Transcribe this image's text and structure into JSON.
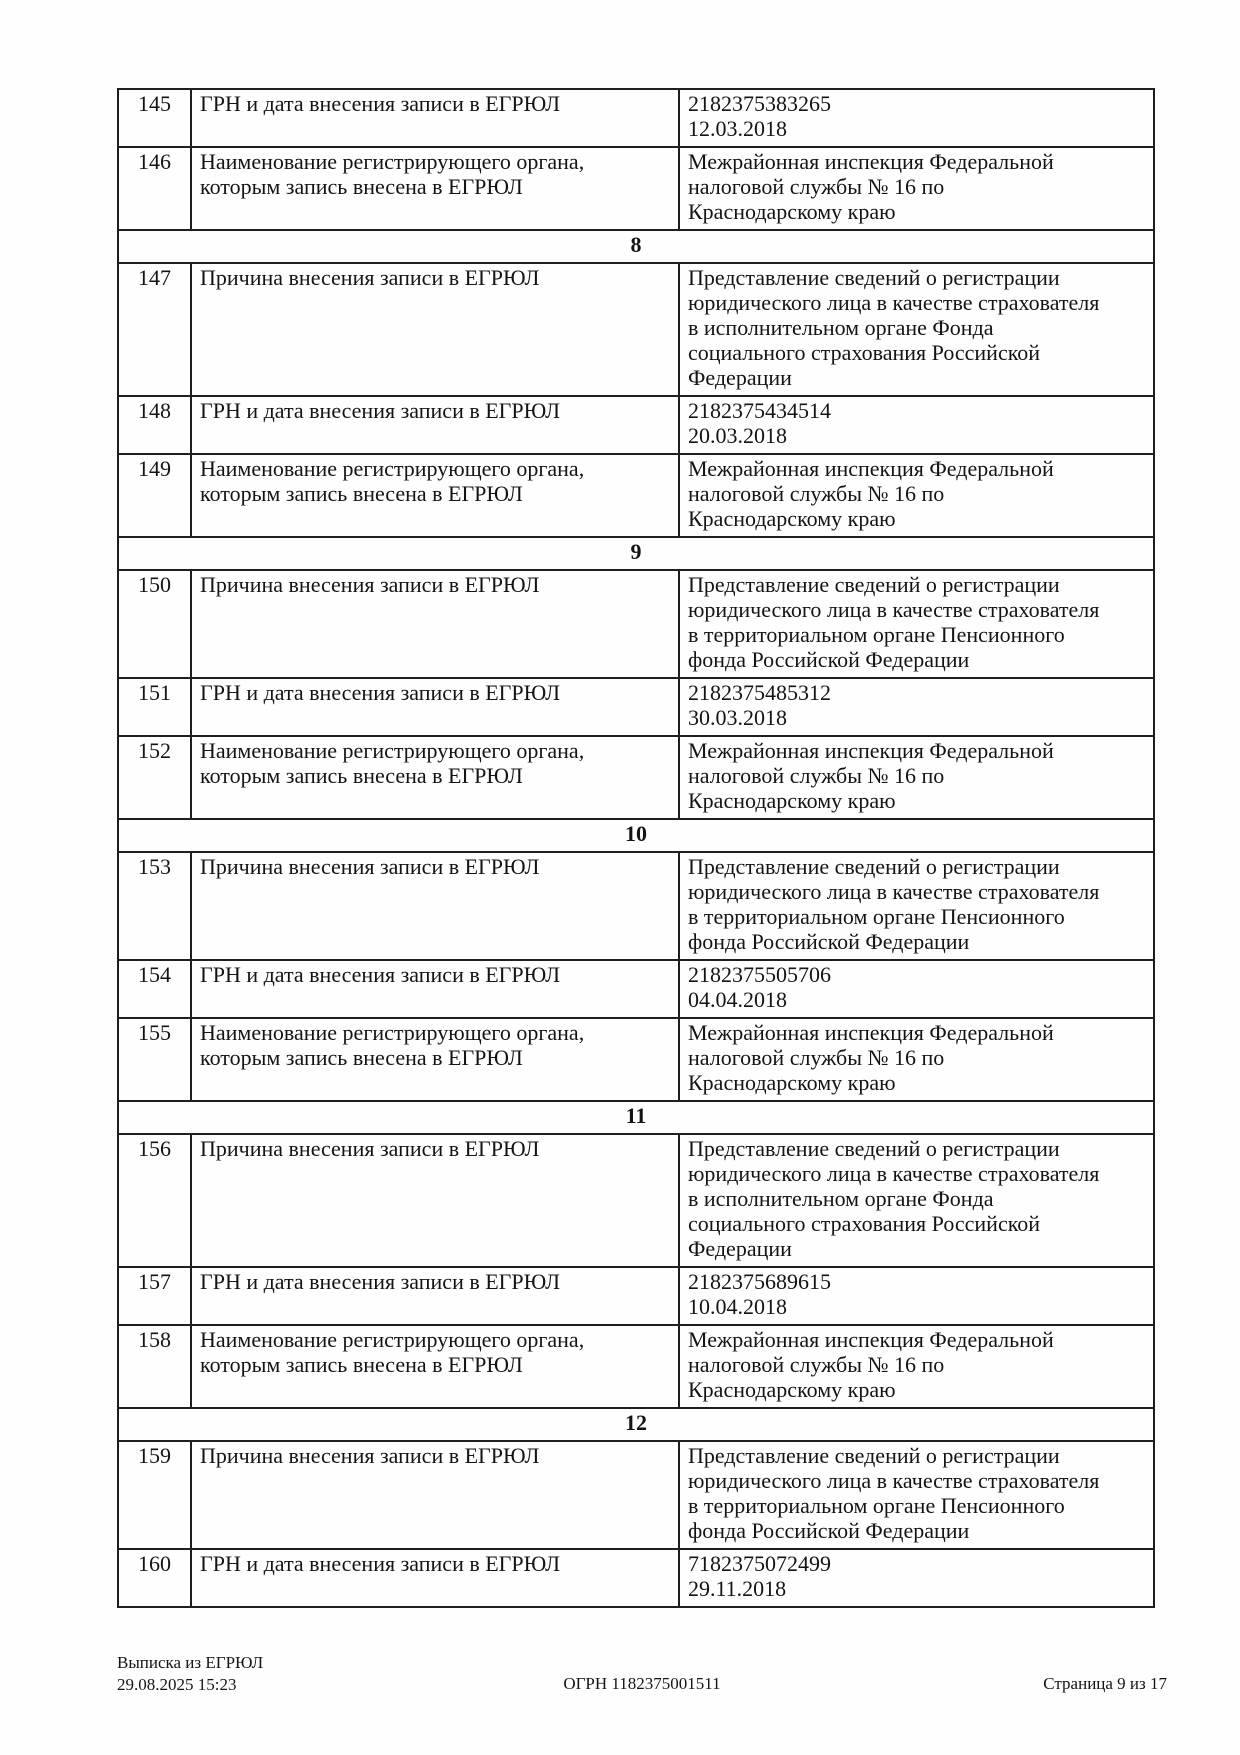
{
  "rows": [
    {
      "num": "145",
      "label": "ГРН и дата внесения записи в ЕГРЮЛ",
      "value": "2182375383265\n12.03.2018"
    },
    {
      "num": "146",
      "label": "Наименование регистрирующего органа,\nкоторым запись внесена в ЕГРЮЛ",
      "value": "Межрайонная инспекция Федеральной\nналоговой службы № 16 по\nКраснодарскому краю"
    },
    {
      "section": "8"
    },
    {
      "num": "147",
      "label": "Причина внесения записи в ЕГРЮЛ",
      "value": "Представление сведений о регистрации\nюридического лица в качестве страхователя\nв исполнительном органе Фонда\nсоциального страхования Российской\nФедерации"
    },
    {
      "num": "148",
      "label": "ГРН и дата внесения записи в ЕГРЮЛ",
      "value": "2182375434514\n20.03.2018"
    },
    {
      "num": "149",
      "label": "Наименование регистрирующего органа,\nкоторым запись внесена в ЕГРЮЛ",
      "value": "Межрайонная инспекция Федеральной\nналоговой службы № 16 по\nКраснодарскому краю"
    },
    {
      "section": "9"
    },
    {
      "num": "150",
      "label": "Причина внесения записи в ЕГРЮЛ",
      "value": "Представление сведений о регистрации\nюридического лица в качестве страхователя\nв территориальном органе Пенсионного\nфонда Российской Федерации"
    },
    {
      "num": "151",
      "label": "ГРН и дата внесения записи в ЕГРЮЛ",
      "value": "2182375485312\n30.03.2018"
    },
    {
      "num": "152",
      "label": "Наименование регистрирующего органа,\nкоторым запись внесена в ЕГРЮЛ",
      "value": "Межрайонная инспекция Федеральной\nналоговой службы № 16 по\nКраснодарскому краю"
    },
    {
      "section": "10"
    },
    {
      "num": "153",
      "label": "Причина внесения записи в ЕГРЮЛ",
      "value": "Представление сведений о регистрации\nюридического лица в качестве страхователя\nв территориальном органе Пенсионного\nфонда Российской Федерации"
    },
    {
      "num": "154",
      "label": "ГРН и дата внесения записи в ЕГРЮЛ",
      "value": "2182375505706\n04.04.2018"
    },
    {
      "num": "155",
      "label": "Наименование регистрирующего органа,\nкоторым запись внесена в ЕГРЮЛ",
      "value": "Межрайонная инспекция Федеральной\nналоговой службы № 16 по\nКраснодарскому краю"
    },
    {
      "section": "11"
    },
    {
      "num": "156",
      "label": "Причина внесения записи в ЕГРЮЛ",
      "value": "Представление сведений о регистрации\nюридического лица в качестве страхователя\nв исполнительном органе Фонда\nсоциального страхования Российской\nФедерации"
    },
    {
      "num": "157",
      "label": "ГРН и дата внесения записи в ЕГРЮЛ",
      "value": "2182375689615\n10.04.2018"
    },
    {
      "num": "158",
      "label": "Наименование регистрирующего органа,\nкоторым запись внесена в ЕГРЮЛ",
      "value": "Межрайонная инспекция Федеральной\nналоговой службы № 16 по\nКраснодарскому краю"
    },
    {
      "section": "12"
    },
    {
      "num": "159",
      "label": "Причина внесения записи в ЕГРЮЛ",
      "value": "Представление сведений о регистрации\nюридического лица в качестве страхователя\nв территориальном органе Пенсионного\nфонда Российской Федерации"
    },
    {
      "num": "160",
      "label": "ГРН и дата внесения записи в ЕГРЮЛ",
      "value": "7182375072499\n29.11.2018"
    }
  ],
  "footer": {
    "doc_title": "Выписка из ЕГРЮЛ",
    "generated": "29.08.2025 15:23",
    "ogrn": "ОГРН 1182375001511",
    "page": "Страница 9 из 17"
  }
}
